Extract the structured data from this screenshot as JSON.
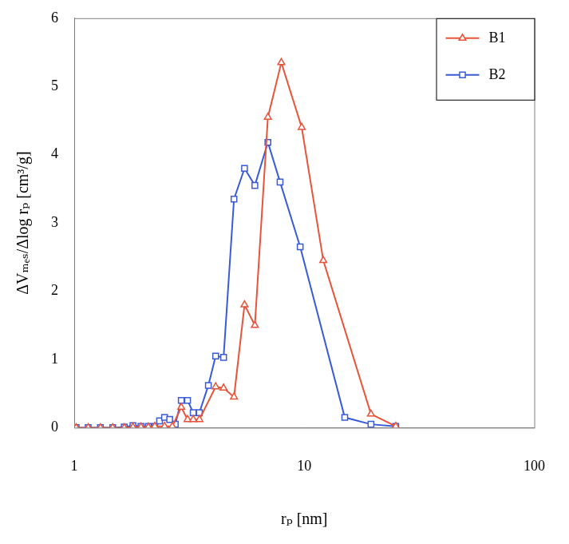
{
  "chart_data": {
    "type": "line",
    "x_label": "rₚ [nm]",
    "y_label": "ΔVₘₑₛ/Δlog rₚ [cm³/g]",
    "log": "x",
    "grid": false,
    "legend": "upper right",
    "xlim": [
      1,
      100
    ],
    "xticks": [
      1,
      10,
      100
    ],
    "ylim": [
      0,
      6
    ],
    "yticks": [
      0,
      1,
      2,
      3,
      4,
      5,
      6
    ],
    "series": [
      {
        "name": "B1",
        "color": "#e8533a",
        "marker": "triangle",
        "line_style": "solid",
        "x": [
          1.02,
          1.15,
          1.3,
          1.47,
          1.65,
          1.8,
          1.95,
          2.1,
          2.24,
          2.47,
          2.67,
          2.92,
          3.11,
          3.29,
          3.5,
          4.12,
          4.46,
          4.95,
          5.5,
          6.1,
          6.95,
          7.95,
          9.75,
          12.1,
          19.5,
          25
        ],
        "values": [
          0,
          0,
          0,
          0,
          0,
          0.01,
          0.01,
          0.01,
          0.02,
          0.02,
          0.02,
          0.3,
          0.12,
          0.12,
          0.12,
          0.6,
          0.58,
          0.45,
          1.8,
          1.5,
          4.55,
          5.35,
          4.4,
          2.45,
          0.2,
          0.02
        ]
      },
      {
        "name": "B2",
        "color": "#3a5bd9",
        "marker": "square",
        "line_style": "solid",
        "x": [
          1.02,
          1.15,
          1.3,
          1.47,
          1.65,
          1.8,
          1.95,
          2.1,
          2.24,
          2.35,
          2.47,
          2.6,
          2.75,
          2.92,
          3.11,
          3.29,
          3.5,
          3.83,
          4.12,
          4.46,
          4.95,
          5.5,
          6.1,
          6.95,
          7.85,
          9.6,
          15,
          19.5,
          25
        ],
        "values": [
          0,
          0,
          0,
          0,
          0.01,
          0.03,
          0.02,
          0.02,
          0.02,
          0.1,
          0.15,
          0.12,
          0.05,
          0.4,
          0.4,
          0.22,
          0.22,
          0.62,
          1.05,
          1.03,
          3.35,
          3.8,
          3.55,
          4.18,
          3.6,
          2.65,
          0.15,
          0.05,
          0.02
        ]
      }
    ]
  }
}
